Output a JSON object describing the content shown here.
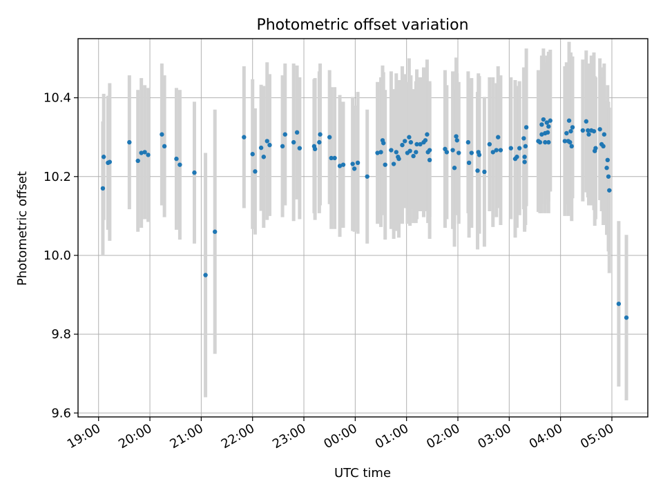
{
  "chart_data": {
    "type": "scatter",
    "title": "Photometric offset variation",
    "xlabel": "UTC time",
    "ylabel": "Photometric offset",
    "xlim": [
      "18:36",
      "05:42"
    ],
    "ylim": [
      9.59,
      10.55
    ],
    "grid": true,
    "x_ticks": [
      "19:00",
      "20:00",
      "21:00",
      "22:00",
      "23:00",
      "00:00",
      "01:00",
      "02:00",
      "03:00",
      "04:00",
      "05:00"
    ],
    "y_ticks": [
      "9.6",
      "9.8",
      "10.0",
      "10.2",
      "10.4"
    ],
    "colors": {
      "point": "#1f77b4",
      "errorbar": "#d3d3d3",
      "grid": "#b0b0b0"
    },
    "points": [
      {
        "t": "19:05",
        "y": 10.17,
        "err": 0.17
      },
      {
        "t": "19:06",
        "y": 10.25,
        "err": 0.16
      },
      {
        "t": "19:11",
        "y": 10.235,
        "err": 0.17
      },
      {
        "t": "19:13",
        "y": 10.237,
        "err": 0.2
      },
      {
        "t": "19:36",
        "y": 10.287,
        "err": 0.17
      },
      {
        "t": "19:46",
        "y": 10.24,
        "err": 0.18
      },
      {
        "t": "19:50",
        "y": 10.26,
        "err": 0.19
      },
      {
        "t": "19:54",
        "y": 10.262,
        "err": 0.17
      },
      {
        "t": "19:58",
        "y": 10.255,
        "err": 0.17
      },
      {
        "t": "20:14",
        "y": 10.307,
        "err": 0.18
      },
      {
        "t": "20:17",
        "y": 10.277,
        "err": 0.18
      },
      {
        "t": "20:31",
        "y": 10.245,
        "err": 0.18
      },
      {
        "t": "20:35",
        "y": 10.23,
        "err": 0.19
      },
      {
        "t": "20:52",
        "y": 10.21,
        "err": 0.18
      },
      {
        "t": "21:05",
        "y": 9.95,
        "err": 0.31
      },
      {
        "t": "21:16",
        "y": 10.06,
        "err": 0.31
      },
      {
        "t": "21:50",
        "y": 10.3,
        "err": 0.18
      },
      {
        "t": "22:00",
        "y": 10.257,
        "err": 0.19
      },
      {
        "t": "22:03",
        "y": 10.213,
        "err": 0.16
      },
      {
        "t": "22:10",
        "y": 10.273,
        "err": 0.16
      },
      {
        "t": "22:13",
        "y": 10.25,
        "err": 0.18
      },
      {
        "t": "22:17",
        "y": 10.29,
        "err": 0.2
      },
      {
        "t": "22:20",
        "y": 10.28,
        "err": 0.18
      },
      {
        "t": "22:35",
        "y": 10.277,
        "err": 0.18
      },
      {
        "t": "22:38",
        "y": 10.307,
        "err": 0.18
      },
      {
        "t": "22:48",
        "y": 10.287,
        "err": 0.2
      },
      {
        "t": "22:52",
        "y": 10.312,
        "err": 0.17
      },
      {
        "t": "22:55",
        "y": 10.272,
        "err": 0.18
      },
      {
        "t": "23:12",
        "y": 10.277,
        "err": 0.17
      },
      {
        "t": "23:13",
        "y": 10.27,
        "err": 0.18
      },
      {
        "t": "23:18",
        "y": 10.287,
        "err": 0.18
      },
      {
        "t": "23:19",
        "y": 10.307,
        "err": 0.18
      },
      {
        "t": "23:30",
        "y": 10.3,
        "err": 0.17
      },
      {
        "t": "23:32",
        "y": 10.247,
        "err": 0.18
      },
      {
        "t": "23:36",
        "y": 10.247,
        "err": 0.18
      },
      {
        "t": "23:42",
        "y": 10.227,
        "err": 0.18
      },
      {
        "t": "23:46",
        "y": 10.23,
        "err": 0.16
      },
      {
        "t": "23:57",
        "y": 10.232,
        "err": 0.17
      },
      {
        "t": "23:59",
        "y": 10.22,
        "err": 0.16
      },
      {
        "t": "00:03",
        "y": 10.235,
        "err": 0.18
      },
      {
        "t": "00:14",
        "y": 10.2,
        "err": 0.17
      },
      {
        "t": "00:26",
        "y": 10.26,
        "err": 0.18
      },
      {
        "t": "00:30",
        "y": 10.262,
        "err": 0.19
      },
      {
        "t": "00:32",
        "y": 10.292,
        "err": 0.19
      },
      {
        "t": "00:33",
        "y": 10.285,
        "err": 0.18
      },
      {
        "t": "00:35",
        "y": 10.23,
        "err": 0.19
      },
      {
        "t": "00:42",
        "y": 10.267,
        "err": 0.2
      },
      {
        "t": "00:45",
        "y": 10.232,
        "err": 0.19
      },
      {
        "t": "00:48",
        "y": 10.262,
        "err": 0.2
      },
      {
        "t": "00:50",
        "y": 10.25,
        "err": 0.18
      },
      {
        "t": "00:51",
        "y": 10.245,
        "err": 0.2
      },
      {
        "t": "00:55",
        "y": 10.28,
        "err": 0.2
      },
      {
        "t": "00:58",
        "y": 10.29,
        "err": 0.17
      },
      {
        "t": "01:01",
        "y": 10.26,
        "err": 0.18
      },
      {
        "t": "01:03",
        "y": 10.3,
        "err": 0.2
      },
      {
        "t": "01:04",
        "y": 10.265,
        "err": 0.19
      },
      {
        "t": "01:05",
        "y": 10.287,
        "err": 0.17
      },
      {
        "t": "01:08",
        "y": 10.252,
        "err": 0.17
      },
      {
        "t": "01:11",
        "y": 10.262,
        "err": 0.18
      },
      {
        "t": "01:12",
        "y": 10.282,
        "err": 0.19
      },
      {
        "t": "01:16",
        "y": 10.282,
        "err": 0.17
      },
      {
        "t": "01:20",
        "y": 10.287,
        "err": 0.19
      },
      {
        "t": "01:22",
        "y": 10.292,
        "err": 0.18
      },
      {
        "t": "01:24",
        "y": 10.307,
        "err": 0.19
      },
      {
        "t": "01:25",
        "y": 10.262,
        "err": 0.18
      },
      {
        "t": "01:27",
        "y": 10.242,
        "err": 0.2
      },
      {
        "t": "01:27",
        "y": 10.267,
        "err": 0.17
      },
      {
        "t": "01:45",
        "y": 10.27,
        "err": 0.2
      },
      {
        "t": "01:47",
        "y": 10.262,
        "err": 0.17
      },
      {
        "t": "01:54",
        "y": 10.267,
        "err": 0.2
      },
      {
        "t": "01:56",
        "y": 10.222,
        "err": 0.2
      },
      {
        "t": "01:58",
        "y": 10.302,
        "err": 0.2
      },
      {
        "t": "01:59",
        "y": 10.292,
        "err": 0.17
      },
      {
        "t": "02:01",
        "y": 10.26,
        "err": 0.18
      },
      {
        "t": "02:12",
        "y": 10.287,
        "err": 0.18
      },
      {
        "t": "02:13",
        "y": 10.235,
        "err": 0.19
      },
      {
        "t": "02:16",
        "y": 10.26,
        "err": 0.19
      },
      {
        "t": "02:23",
        "y": 10.215,
        "err": 0.2
      },
      {
        "t": "02:24",
        "y": 10.262,
        "err": 0.2
      },
      {
        "t": "02:25",
        "y": 10.255,
        "err": 0.2
      },
      {
        "t": "02:31",
        "y": 10.212,
        "err": 0.19
      },
      {
        "t": "02:37",
        "y": 10.282,
        "err": 0.17
      },
      {
        "t": "02:41",
        "y": 10.262,
        "err": 0.19
      },
      {
        "t": "02:45",
        "y": 10.267,
        "err": 0.17
      },
      {
        "t": "02:47",
        "y": 10.3,
        "err": 0.18
      },
      {
        "t": "02:50",
        "y": 10.267,
        "err": 0.19
      },
      {
        "t": "03:02",
        "y": 10.272,
        "err": 0.18
      },
      {
        "t": "03:07",
        "y": 10.245,
        "err": 0.2
      },
      {
        "t": "03:09",
        "y": 10.25,
        "err": 0.18
      },
      {
        "t": "03:12",
        "y": 10.272,
        "err": 0.17
      },
      {
        "t": "03:17",
        "y": 10.297,
        "err": 0.18
      },
      {
        "t": "03:18",
        "y": 10.237,
        "err": 0.17
      },
      {
        "t": "03:18",
        "y": 10.25,
        "err": 0.19
      },
      {
        "t": "03:19",
        "y": 10.277,
        "err": 0.2
      },
      {
        "t": "03:20",
        "y": 10.325,
        "err": 0.2
      },
      {
        "t": "03:34",
        "y": 10.29,
        "err": 0.18
      },
      {
        "t": "03:36",
        "y": 10.287,
        "err": 0.18
      },
      {
        "t": "03:38",
        "y": 10.307,
        "err": 0.2
      },
      {
        "t": "03:38",
        "y": 10.332,
        "err": 0.17
      },
      {
        "t": "03:40",
        "y": 10.345,
        "err": 0.18
      },
      {
        "t": "03:42",
        "y": 10.287,
        "err": 0.18
      },
      {
        "t": "03:42",
        "y": 10.31,
        "err": 0.18
      },
      {
        "t": "03:44",
        "y": 10.337,
        "err": 0.17
      },
      {
        "t": "03:45",
        "y": 10.312,
        "err": 0.17
      },
      {
        "t": "03:46",
        "y": 10.327,
        "err": 0.19
      },
      {
        "t": "03:46",
        "y": 10.287,
        "err": 0.18
      },
      {
        "t": "03:48",
        "y": 10.342,
        "err": 0.18
      },
      {
        "t": "04:05",
        "y": 10.29,
        "err": 0.19
      },
      {
        "t": "04:07",
        "y": 10.31,
        "err": 0.18
      },
      {
        "t": "04:09",
        "y": 10.29,
        "err": 0.19
      },
      {
        "t": "04:10",
        "y": 10.342,
        "err": 0.2
      },
      {
        "t": "04:11",
        "y": 10.287,
        "err": 0.17
      },
      {
        "t": "04:12",
        "y": 10.315,
        "err": 0.2
      },
      {
        "t": "04:13",
        "y": 10.277,
        "err": 0.19
      },
      {
        "t": "04:14",
        "y": 10.325,
        "err": 0.18
      },
      {
        "t": "04:26",
        "y": 10.317,
        "err": 0.18
      },
      {
        "t": "04:30",
        "y": 10.34,
        "err": 0.18
      },
      {
        "t": "04:32",
        "y": 10.317,
        "err": 0.17
      },
      {
        "t": "04:33",
        "y": 10.307,
        "err": 0.18
      },
      {
        "t": "04:36",
        "y": 10.317,
        "err": 0.19
      },
      {
        "t": "04:39",
        "y": 10.315,
        "err": 0.2
      },
      {
        "t": "04:40",
        "y": 10.265,
        "err": 0.19
      },
      {
        "t": "04:41",
        "y": 10.272,
        "err": 0.18
      },
      {
        "t": "04:46",
        "y": 10.32,
        "err": 0.18
      },
      {
        "t": "04:48",
        "y": 10.282,
        "err": 0.17
      },
      {
        "t": "04:50",
        "y": 10.277,
        "err": 0.2
      },
      {
        "t": "04:51",
        "y": 10.307,
        "err": 0.18
      },
      {
        "t": "04:54",
        "y": 10.222,
        "err": 0.17
      },
      {
        "t": "04:55",
        "y": 10.242,
        "err": 0.19
      },
      {
        "t": "04:56",
        "y": 10.2,
        "err": 0.19
      },
      {
        "t": "04:57",
        "y": 10.165,
        "err": 0.21
      },
      {
        "t": "05:08",
        "y": 9.877,
        "err": 0.21
      },
      {
        "t": "05:17",
        "y": 9.842,
        "err": 0.21
      }
    ]
  }
}
